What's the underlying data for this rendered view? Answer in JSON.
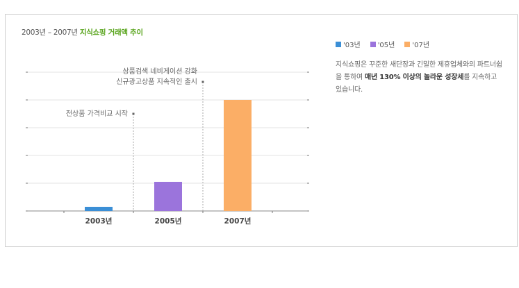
{
  "title": {
    "prefix": "2003년 – 2007년 ",
    "highlight": "지식쇼핑 거래액 추이"
  },
  "legend": [
    {
      "label": "'03년",
      "color": "#3b8fd6"
    },
    {
      "label": "'05년",
      "color": "#9b74dc"
    },
    {
      "label": "'07년",
      "color": "#fbae66"
    }
  ],
  "description": {
    "text1": "지식쇼핑은 꾸준한 새단장과 긴밀한 제휴업체와의 파트너쉽을 통하여 ",
    "bold1": "매년 130% 이상의 놀라운 성장세",
    "text2": "를 지속하고 있습니다."
  },
  "chart_data": {
    "type": "bar",
    "categories": [
      "2003년",
      "2005년",
      "2007년"
    ],
    "values": [
      0.15,
      1.05,
      4.0
    ],
    "colors": [
      "#3b8fd6",
      "#9b74dc",
      "#fbae66"
    ],
    "ylim": [
      0,
      5
    ],
    "yticks": [
      0,
      1,
      2,
      3,
      4,
      5
    ],
    "grid": true,
    "annotations": [
      {
        "at": 0.5,
        "y": 3.5,
        "lines": [
          "전상품 가격비교 시작"
        ]
      },
      {
        "at": 1.5,
        "y": 4.65,
        "lines": [
          "상품검색 네비게이션 강화",
          "신규광고상품 지속적인 출시"
        ]
      }
    ]
  }
}
